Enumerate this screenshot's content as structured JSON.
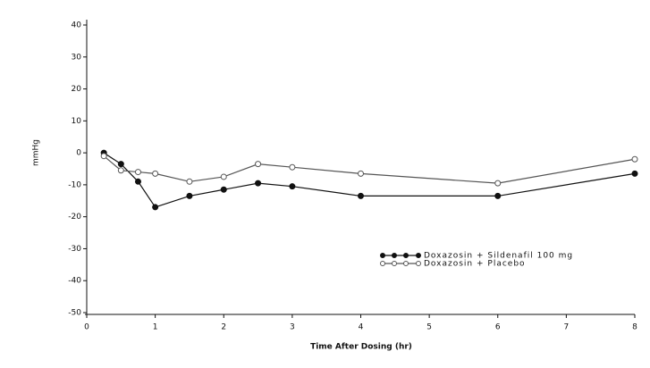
{
  "chart_data": {
    "type": "line",
    "xlabel": "Time After Dosing (hr)",
    "ylabel": "mmHg",
    "xlim": [
      0,
      8
    ],
    "xticks": [
      0,
      1,
      2,
      3,
      4,
      5,
      6,
      7,
      8
    ],
    "ylim": [
      -50,
      40
    ],
    "yticks": [
      -50,
      -40,
      -30,
      -20,
      -10,
      0,
      10,
      20,
      30,
      40
    ],
    "grid": false,
    "legend": "lower right",
    "x": [
      0.25,
      0.5,
      0.75,
      1,
      1.5,
      2,
      2.5,
      3,
      4,
      6,
      8
    ],
    "series": [
      {
        "name": "Doxazosin + Sildenafil 100 mg",
        "color": "#111111",
        "marker": "filled",
        "values": [
          0,
          -3.5,
          -9,
          -17,
          -13.5,
          -11.5,
          -9.5,
          -10.5,
          -13.5,
          -13.5,
          -6.5
        ]
      },
      {
        "name": "Doxazosin + Placebo",
        "color": "#555555",
        "marker": "open",
        "values": [
          -1,
          -5.5,
          -6,
          -6.5,
          -9,
          -7.5,
          -3.5,
          -4.5,
          -6.5,
          -9.5,
          -2
        ]
      }
    ]
  }
}
